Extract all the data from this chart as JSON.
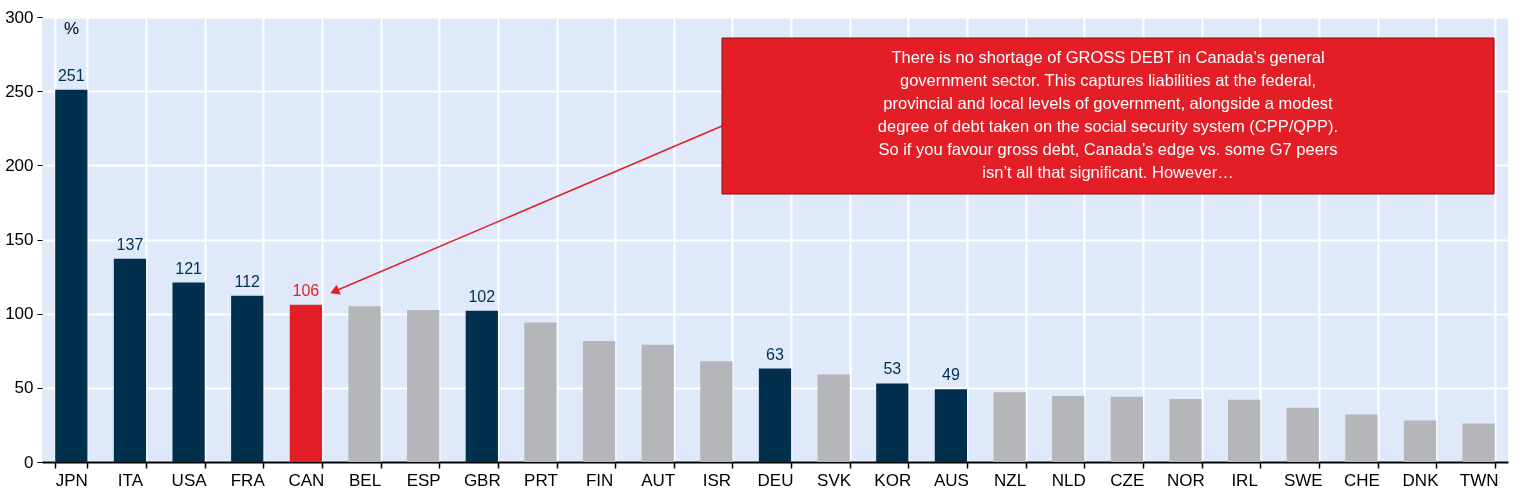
{
  "chart_data": {
    "type": "bar",
    "categories": [
      "JPN",
      "ITA",
      "USA",
      "FRA",
      "CAN",
      "BEL",
      "ESP",
      "GBR",
      "PRT",
      "FIN",
      "AUT",
      "ISR",
      "DEU",
      "SVK",
      "KOR",
      "AUS",
      "NZL",
      "NLD",
      "CZE",
      "NOR",
      "IRL",
      "SWE",
      "CHE",
      "DNK",
      "TWN"
    ],
    "values": [
      251,
      137,
      121,
      112,
      106,
      105,
      102.5,
      102,
      94,
      81.5,
      79,
      68,
      63,
      59,
      53,
      49,
      47,
      44.5,
      44,
      42.5,
      42,
      36.5,
      32,
      28,
      26
    ],
    "value_labels": [
      "251",
      "137",
      "121",
      "112",
      "106",
      null,
      null,
      "102",
      null,
      null,
      null,
      null,
      "63",
      null,
      "53",
      "49",
      null,
      null,
      null,
      null,
      null,
      null,
      null,
      null,
      null
    ],
    "colors": [
      "#00304d",
      "#00304d",
      "#00304d",
      "#00304d",
      "#e41e26",
      "#b5b6b9",
      "#b5b6b9",
      "#00304d",
      "#b5b6b9",
      "#b5b6b9",
      "#b5b6b9",
      "#b5b6b9",
      "#00304d",
      "#b5b6b9",
      "#00304d",
      "#00304d",
      "#b5b6b9",
      "#b5b6b9",
      "#b5b6b9",
      "#b5b6b9",
      "#b5b6b9",
      "#b5b6b9",
      "#b5b6b9",
      "#b5b6b9",
      "#b5b6b9"
    ],
    "ylabel": "%",
    "ylim": [
      0,
      300
    ],
    "yticks": [
      0,
      50,
      100,
      150,
      200,
      250,
      300
    ],
    "grid": true,
    "annotations": [
      {
        "text": "There is no shortage of GROSS DEBT in Canada’s general government sector. This captures liabilities at the federal, provincial and local levels of government, alongside a modest degree of debt taken on the social security system (CPP/QPP). So if you favour gross debt, Canada’s edge vs. some G7 peers isn’t all that significant. However…"
      }
    ]
  }
}
